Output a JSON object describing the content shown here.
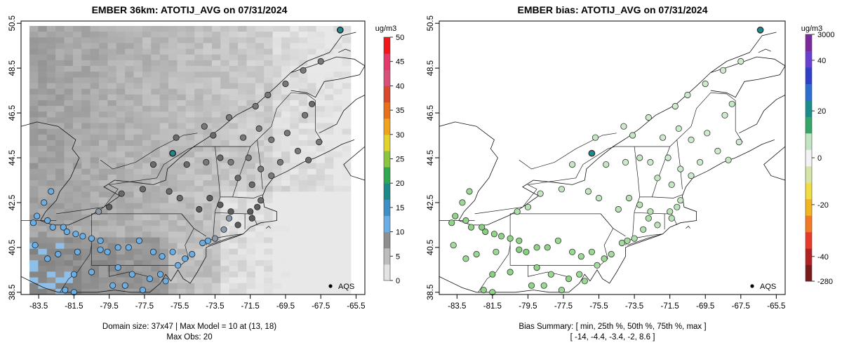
{
  "left_panel": {
    "title": "EMBER 36km: ATOTIJ_AVG on 07/31/2024",
    "x_ticks": [
      "-83.5",
      "-81.5",
      "-79.5",
      "-77.5",
      "-75.5",
      "-73.5",
      "-71.5",
      "-69.5",
      "-67.5",
      "-65.5"
    ],
    "y_ticks": [
      "38.5",
      "40.5",
      "42.5",
      "44.5",
      "46.5",
      "48.5",
      "50.5"
    ],
    "legend_label": "AQS",
    "footer_line1": "Domain size: 37x47 | Max Model = 10 at (13, 18)",
    "footer_line2": "Max Obs: 20",
    "colorbar": {
      "unit": "ug/m3",
      "ticks": [
        "0",
        "5",
        "10",
        "15",
        "20",
        "25",
        "30",
        "35",
        "40",
        "45",
        "50"
      ],
      "colors": [
        "#e3e3e3",
        "#bdbdbd",
        "#8e8e8e",
        "#6aaee6",
        "#3e8ec8",
        "#1d8a8a",
        "#2fa84f",
        "#8cc63f",
        "#e2d32a",
        "#f0a21c",
        "#e8701a",
        "#d9482c",
        "#d8507a",
        "#e3396b",
        "#f2171b"
      ]
    }
  },
  "right_panel": {
    "title": "EMBER bias: ATOTIJ_AVG on 07/31/2024",
    "x_ticks": [
      "-83.5",
      "-81.5",
      "-79.5",
      "-77.5",
      "-75.5",
      "-73.5",
      "-71.5",
      "-69.5",
      "-67.5",
      "-65.5"
    ],
    "y_ticks": [
      "38.5",
      "40.5",
      "42.5",
      "44.5",
      "46.5",
      "48.5",
      "50.5"
    ],
    "legend_label": "AQS",
    "footer_line1": "Bias Summary: [ min, 25th %, 50th %, 75th %, max ]",
    "footer_line2": "[ -14,   -4.4,   -3.4,   -2,   8.6 ]",
    "colorbar": {
      "unit": "ug/m3",
      "ticks": [
        "3000",
        "40",
        "20",
        "0",
        "-20",
        "-40",
        "-280"
      ],
      "colors": [
        "#7a1b1b",
        "#b22222",
        "#e83a2a",
        "#f27a26",
        "#f0b51f",
        "#f2dc43",
        "#d5e4a7",
        "#f2f2f2",
        "#c3e3c3",
        "#34a66a",
        "#1b8c8c",
        "#2f6cd0",
        "#2f3fc8",
        "#6a3fd0",
        "#7a2a9a"
      ]
    }
  },
  "chart_data": {
    "type": "map",
    "domain": "Northeastern United States / southeastern Canada",
    "lon_range": [
      -84.5,
      -65.0
    ],
    "lat_range": [
      38.4,
      50.6
    ],
    "model_range": [
      0,
      10
    ],
    "obs_max": 20,
    "max_model_grid_cell": [
      13,
      18
    ],
    "bias_stats": {
      "min": -14,
      "p25": -4.4,
      "p50": -3.4,
      "p75": -2,
      "max": 8.6
    },
    "sites": [
      {
        "lon": -82.8,
        "lat": 43.0,
        "obs": 10
      },
      {
        "lon": -83.2,
        "lat": 42.5,
        "obs": 10
      },
      {
        "lon": -83.6,
        "lat": 41.9,
        "obs": 11
      },
      {
        "lon": -83.8,
        "lat": 41.6,
        "obs": 11
      },
      {
        "lon": -83.0,
        "lat": 41.7,
        "obs": 11
      },
      {
        "lon": -82.7,
        "lat": 41.4,
        "obs": 11
      },
      {
        "lon": -82.1,
        "lat": 41.4,
        "obs": 12
      },
      {
        "lon": -81.9,
        "lat": 41.2,
        "obs": 12
      },
      {
        "lon": -81.4,
        "lat": 41.1,
        "obs": 11
      },
      {
        "lon": -81.0,
        "lat": 41.0,
        "obs": 11
      },
      {
        "lon": -80.5,
        "lat": 40.9,
        "obs": 11
      },
      {
        "lon": -80.0,
        "lat": 40.8,
        "obs": 11
      },
      {
        "lon": -80.0,
        "lat": 40.4,
        "obs": 12
      },
      {
        "lon": -79.6,
        "lat": 40.3,
        "obs": 12
      },
      {
        "lon": -79.0,
        "lat": 40.5,
        "obs": 11
      },
      {
        "lon": -78.4,
        "lat": 40.5,
        "obs": 11
      },
      {
        "lon": -77.8,
        "lat": 40.8,
        "obs": 10
      },
      {
        "lon": -77.0,
        "lat": 40.3,
        "obs": 10
      },
      {
        "lon": -76.5,
        "lat": 40.1,
        "obs": 10
      },
      {
        "lon": -75.9,
        "lat": 40.3,
        "obs": 10
      },
      {
        "lon": -75.2,
        "lat": 40.0,
        "obs": 10
      },
      {
        "lon": -74.8,
        "lat": 40.2,
        "obs": 9
      },
      {
        "lon": -79.0,
        "lat": 39.6,
        "obs": 11
      },
      {
        "lon": -78.2,
        "lat": 39.3,
        "obs": 10
      },
      {
        "lon": -77.2,
        "lat": 39.1,
        "obs": 11
      },
      {
        "lon": -76.6,
        "lat": 39.3,
        "obs": 10
      },
      {
        "lon": -76.3,
        "lat": 39.0,
        "obs": 10
      },
      {
        "lon": -75.6,
        "lat": 39.7,
        "obs": 9
      },
      {
        "lon": -80.5,
        "lat": 39.4,
        "obs": 11
      },
      {
        "lon": -81.5,
        "lat": 39.3,
        "obs": 12
      },
      {
        "lon": -82.0,
        "lat": 38.6,
        "obs": 11
      },
      {
        "lon": -83.7,
        "lat": 40.6,
        "obs": 9
      },
      {
        "lon": -83.0,
        "lat": 40.0,
        "obs": 10
      },
      {
        "lon": -82.4,
        "lat": 40.2,
        "obs": 10
      },
      {
        "lon": -81.3,
        "lat": 40.3,
        "obs": 10
      },
      {
        "lon": -77.6,
        "lat": 38.6,
        "obs": 10
      },
      {
        "lon": -78.6,
        "lat": 38.8,
        "obs": 10
      },
      {
        "lon": -79.3,
        "lat": 38.8,
        "obs": 11
      },
      {
        "lon": -74.2,
        "lat": 40.7,
        "obs": 9
      },
      {
        "lon": -73.9,
        "lat": 40.8,
        "obs": 9
      },
      {
        "lon": -73.5,
        "lat": 40.9,
        "obs": 8
      },
      {
        "lon": -73.0,
        "lat": 41.3,
        "obs": 8
      },
      {
        "lon": -72.7,
        "lat": 41.8,
        "obs": 8
      },
      {
        "lon": -72.2,
        "lat": 41.5,
        "obs": 7
      },
      {
        "lon": -71.4,
        "lat": 41.8,
        "obs": 7
      },
      {
        "lon": -71.1,
        "lat": 42.3,
        "obs": 7
      },
      {
        "lon": -70.9,
        "lat": 42.6,
        "obs": 6
      },
      {
        "lon": -71.5,
        "lat": 42.1,
        "obs": 7
      },
      {
        "lon": -72.6,
        "lat": 42.1,
        "obs": 7
      },
      {
        "lon": -73.2,
        "lat": 42.4,
        "obs": 7
      },
      {
        "lon": -73.8,
        "lat": 42.7,
        "obs": 7
      },
      {
        "lon": -74.4,
        "lat": 42.2,
        "obs": 7
      },
      {
        "lon": -75.5,
        "lat": 42.7,
        "obs": 6
      },
      {
        "lon": -76.1,
        "lat": 43.0,
        "obs": 6
      },
      {
        "lon": -77.6,
        "lat": 43.1,
        "obs": 6
      },
      {
        "lon": -78.8,
        "lat": 42.9,
        "obs": 6
      },
      {
        "lon": -79.5,
        "lat": 42.3,
        "obs": 7
      },
      {
        "lon": -80.1,
        "lat": 42.1,
        "obs": 8
      },
      {
        "lon": -75.9,
        "lat": 44.7,
        "obs": 20
      },
      {
        "lon": -75.1,
        "lat": 44.2,
        "obs": 6
      },
      {
        "lon": -74.0,
        "lat": 44.3,
        "obs": 5
      },
      {
        "lon": -73.2,
        "lat": 44.5,
        "obs": 6
      },
      {
        "lon": -72.6,
        "lat": 44.3,
        "obs": 5
      },
      {
        "lon": -71.6,
        "lat": 44.5,
        "obs": 5
      },
      {
        "lon": -70.9,
        "lat": 44.0,
        "obs": 5
      },
      {
        "lon": -70.3,
        "lat": 43.7,
        "obs": 5
      },
      {
        "lon": -71.4,
        "lat": 43.3,
        "obs": 6
      },
      {
        "lon": -72.2,
        "lat": 43.6,
        "obs": 6
      },
      {
        "lon": -69.8,
        "lat": 44.3,
        "obs": 5
      },
      {
        "lon": -68.8,
        "lat": 44.8,
        "obs": 5
      },
      {
        "lon": -68.2,
        "lat": 44.4,
        "obs": 6
      },
      {
        "lon": -67.6,
        "lat": 45.2,
        "obs": 5
      },
      {
        "lon": -68.4,
        "lat": 46.4,
        "obs": 5
      },
      {
        "lon": -68.0,
        "lat": 46.9,
        "obs": 6
      },
      {
        "lon": -69.4,
        "lat": 45.6,
        "obs": 5
      },
      {
        "lon": -70.3,
        "lat": 45.3,
        "obs": 5
      },
      {
        "lon": -71.0,
        "lat": 45.8,
        "obs": 5
      },
      {
        "lon": -71.9,
        "lat": 45.4,
        "obs": 5
      },
      {
        "lon": -73.6,
        "lat": 45.5,
        "obs": 6
      },
      {
        "lon": -74.1,
        "lat": 45.9,
        "obs": 5
      },
      {
        "lon": -72.7,
        "lat": 46.3,
        "obs": 5
      },
      {
        "lon": -71.2,
        "lat": 46.8,
        "obs": 5
      },
      {
        "lon": -70.5,
        "lat": 47.3,
        "obs": 5
      },
      {
        "lon": -69.5,
        "lat": 47.8,
        "obs": 5
      },
      {
        "lon": -68.5,
        "lat": 48.4,
        "obs": 5
      },
      {
        "lon": -67.5,
        "lat": 48.8,
        "obs": 5
      },
      {
        "lon": -66.4,
        "lat": 50.2,
        "obs": 20
      },
      {
        "lon": -77.0,
        "lat": 44.2,
        "obs": 6
      },
      {
        "lon": -75.7,
        "lat": 45.4,
        "obs": 6
      },
      {
        "lon": -81.5,
        "lat": 38.5,
        "obs": 11
      }
    ]
  }
}
